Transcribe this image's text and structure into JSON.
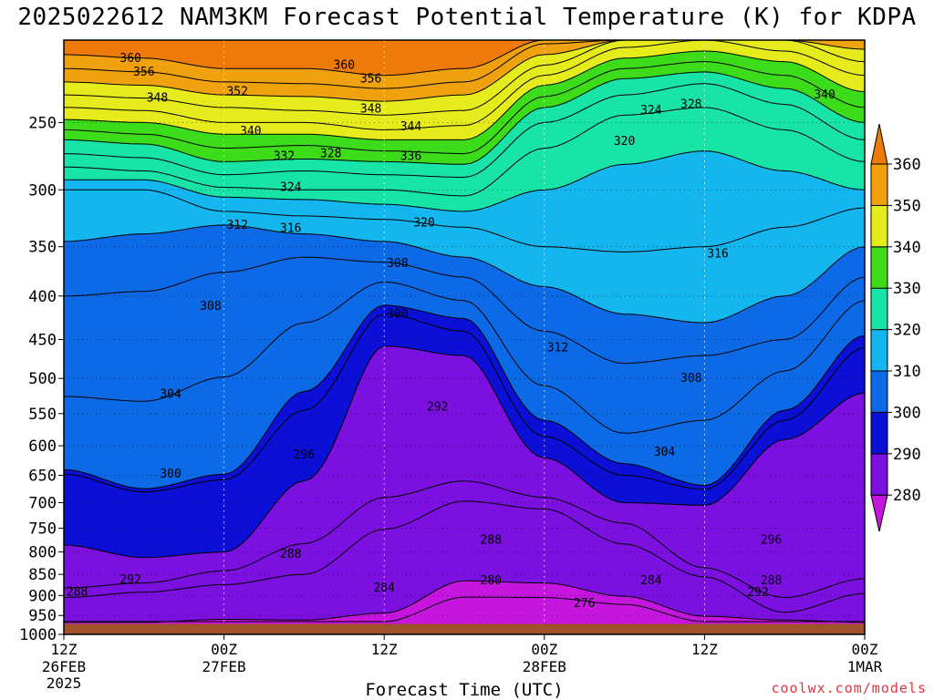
{
  "title": "2025022612 NAM3KM Forecast Potential Temperature (K) for KDPA",
  "credit": "coolwx.com/models",
  "chart_data": {
    "type": "contour",
    "title": "2025022612 NAM3KM Forecast Potential Temperature (K) for KDPA",
    "xlabel": "Forecast Time (UTC)",
    "ylabel": "",
    "x_ticks": [
      {
        "label": "12Z",
        "sub": "26FEB",
        "sub2": "2025",
        "hour": 0
      },
      {
        "label": "00Z",
        "sub": "27FEB",
        "sub2": "",
        "hour": 12
      },
      {
        "label": "12Z",
        "sub": "",
        "sub2": "",
        "hour": 24
      },
      {
        "label": "00Z",
        "sub": "28FEB",
        "sub2": "",
        "hour": 36
      },
      {
        "label": "12Z",
        "sub": "",
        "sub2": "",
        "hour": 48
      },
      {
        "label": "00Z",
        "sub": "1MAR",
        "sub2": "",
        "hour": 60
      }
    ],
    "y_ticks": [
      250,
      300,
      350,
      400,
      450,
      500,
      550,
      600,
      650,
      700,
      750,
      800,
      850,
      900,
      950,
      1000
    ],
    "ylim": [
      200,
      1000
    ],
    "y_log_scale": true,
    "ground_top_pressure": 972,
    "colorbar": {
      "levels": [
        280,
        290,
        300,
        310,
        320,
        330,
        340,
        350,
        360
      ],
      "colors": [
        "#c715e0",
        "#7b10e0",
        "#0c0fd6",
        "#0d6ae6",
        "#13b6ee",
        "#18e4a8",
        "#3cdc1a",
        "#e6ec1c",
        "#f0a20e",
        "#ee7a0a"
      ]
    },
    "series": [
      {
        "name": "276",
        "x": [
          0,
          6,
          12,
          18,
          24,
          30,
          36,
          42,
          48,
          54,
          60
        ],
        "values": [
          966,
          966,
          966,
          966,
          966,
          904,
          905,
          922,
          966,
          966,
          966
        ]
      },
      {
        "name": "280",
        "x": [
          0,
          6,
          12,
          18,
          24,
          30,
          36,
          42,
          48,
          54,
          60
        ],
        "values": [
          968,
          968,
          960,
          962,
          944,
          865,
          870,
          902,
          952,
          962,
          968
        ]
      },
      {
        "name": "284",
        "x": [
          0,
          6,
          12,
          18,
          24,
          30,
          36,
          42,
          48,
          54,
          60
        ],
        "values": [
          905,
          892,
          874,
          850,
          752,
          697,
          712,
          783,
          856,
          942,
          895
        ]
      },
      {
        "name": "288",
        "x": [
          0,
          6,
          12,
          18,
          24,
          30,
          36,
          42,
          48,
          54,
          60
        ],
        "values": [
          882,
          870,
          842,
          782,
          690,
          660,
          690,
          740,
          835,
          905,
          860
        ]
      },
      {
        "name": "292",
        "x": [
          0,
          6,
          12,
          18,
          24,
          30,
          36,
          42,
          48,
          54,
          60
        ],
        "values": [
          785,
          812,
          800,
          660,
          458,
          470,
          620,
          700,
          705,
          590,
          520
        ]
      },
      {
        "name": "296",
        "x": [
          0,
          6,
          12,
          18,
          24,
          30,
          36,
          42,
          48,
          54,
          60
        ],
        "values": [
          648,
          680,
          658,
          545,
          420,
          440,
          585,
          650,
          675,
          560,
          460
        ]
      },
      {
        "name": "300",
        "x": [
          0,
          6,
          12,
          18,
          24,
          30,
          36,
          42,
          48,
          54,
          60
        ],
        "values": [
          640,
          674,
          648,
          518,
          410,
          425,
          560,
          630,
          668,
          545,
          445
        ]
      },
      {
        "name": "304",
        "x": [
          0,
          6,
          12,
          18,
          24,
          30,
          36,
          42,
          48,
          54,
          60
        ],
        "values": [
          525,
          532,
          498,
          430,
          385,
          405,
          510,
          580,
          560,
          490,
          405
        ]
      },
      {
        "name": "308",
        "x": [
          0,
          6,
          12,
          18,
          24,
          30,
          36,
          42,
          48,
          54,
          60
        ],
        "values": [
          400,
          395,
          375,
          360,
          365,
          380,
          440,
          480,
          470,
          450,
          380
        ]
      },
      {
        "name": "312",
        "x": [
          0,
          6,
          12,
          18,
          24,
          30,
          36,
          42,
          48,
          54,
          60
        ],
        "values": [
          345,
          338,
          330,
          338,
          345,
          360,
          390,
          420,
          430,
          400,
          350
        ]
      },
      {
        "name": "316",
        "x": [
          0,
          6,
          12,
          18,
          24,
          30,
          36,
          42,
          48,
          54,
          60
        ],
        "values": [
          300,
          300,
          318,
          322,
          325,
          332,
          350,
          355,
          350,
          332,
          315
        ]
      },
      {
        "name": "320",
        "x": [
          0,
          6,
          12,
          18,
          24,
          30,
          36,
          42,
          48,
          54,
          60
        ],
        "values": [
          292,
          292,
          306,
          308,
          312,
          318,
          300,
          280,
          270,
          285,
          300
        ]
      },
      {
        "name": "324",
        "x": [
          0,
          6,
          12,
          18,
          24,
          30,
          36,
          42,
          48,
          54,
          60
        ],
        "values": [
          282,
          285,
          298,
          300,
          300,
          305,
          268,
          245,
          240,
          255,
          278
        ]
      },
      {
        "name": "328",
        "x": [
          0,
          6,
          12,
          18,
          24,
          30,
          36,
          42,
          48,
          54,
          60
        ],
        "values": [
          272,
          275,
          288,
          285,
          288,
          290,
          250,
          232,
          225,
          238,
          262
        ]
      },
      {
        "name": "332",
        "x": [
          0,
          6,
          12,
          18,
          24,
          30,
          36,
          42,
          48,
          54,
          60
        ],
        "values": [
          262,
          265,
          278,
          276,
          278,
          280,
          240,
          222,
          218,
          228,
          250
        ]
      },
      {
        "name": "336",
        "x": [
          0,
          6,
          12,
          18,
          24,
          30,
          36,
          42,
          48,
          54,
          60
        ],
        "values": [
          255,
          258,
          268,
          266,
          270,
          272,
          233,
          216,
          212,
          220,
          240
        ]
      },
      {
        "name": "340",
        "x": [
          0,
          6,
          12,
          18,
          24,
          30,
          36,
          42,
          48,
          54,
          60
        ],
        "values": [
          248,
          250,
          258,
          258,
          262,
          262,
          226,
          210,
          206,
          212,
          230
        ]
      },
      {
        "name": "344",
        "x": [
          0,
          6,
          12,
          18,
          24,
          30,
          36,
          42,
          48,
          54,
          60
        ],
        "values": [
          240,
          242,
          250,
          250,
          255,
          252,
          220,
          204,
          200,
          206,
          220
        ]
      },
      {
        "name": "348",
        "x": [
          0,
          6,
          12,
          18,
          24,
          30,
          36,
          42,
          48,
          54,
          60
        ],
        "values": [
          232,
          234,
          240,
          242,
          245,
          242,
          214,
          200,
          200,
          200,
          212
        ]
      },
      {
        "name": "352",
        "x": [
          0,
          6,
          12,
          18,
          24,
          30,
          36,
          42,
          48,
          54,
          60
        ],
        "values": [
          224,
          226,
          232,
          233,
          236,
          232,
          208,
          200,
          200,
          200,
          205
        ]
      },
      {
        "name": "356",
        "x": [
          0,
          6,
          12,
          18,
          24,
          30,
          36,
          42,
          48,
          54,
          60
        ],
        "values": [
          216,
          218,
          224,
          225,
          228,
          224,
          202,
          200,
          200,
          200,
          200
        ]
      },
      {
        "name": "360",
        "x": [
          0,
          6,
          12,
          18,
          24,
          30,
          36,
          42,
          48,
          54,
          60
        ],
        "values": [
          208,
          210,
          216,
          216,
          220,
          216,
          200,
          200,
          200,
          200,
          200
        ]
      }
    ],
    "contour_labels": [
      {
        "text": "360",
        "x": 5.0,
        "p": 210
      },
      {
        "text": "356",
        "x": 6.0,
        "p": 218
      },
      {
        "text": "348",
        "x": 7.0,
        "p": 234
      },
      {
        "text": "352",
        "x": 13.0,
        "p": 230
      },
      {
        "text": "360",
        "x": 21.0,
        "p": 214
      },
      {
        "text": "356",
        "x": 23.0,
        "p": 222
      },
      {
        "text": "348",
        "x": 23.0,
        "p": 241
      },
      {
        "text": "344",
        "x": 26.0,
        "p": 253
      },
      {
        "text": "340",
        "x": 14.0,
        "p": 256
      },
      {
        "text": "332",
        "x": 16.5,
        "p": 274
      },
      {
        "text": "328",
        "x": 20.0,
        "p": 272
      },
      {
        "text": "336",
        "x": 26.0,
        "p": 274
      },
      {
        "text": "324",
        "x": 17.0,
        "p": 298
      },
      {
        "text": "312",
        "x": 13.0,
        "p": 330
      },
      {
        "text": "316",
        "x": 17.0,
        "p": 333
      },
      {
        "text": "320",
        "x": 27.0,
        "p": 328
      },
      {
        "text": "324",
        "x": 44.0,
        "p": 242
      },
      {
        "text": "328",
        "x": 47.0,
        "p": 238
      },
      {
        "text": "320",
        "x": 42.0,
        "p": 263
      },
      {
        "text": "340",
        "x": 57.0,
        "p": 232
      },
      {
        "text": "316",
        "x": 49.0,
        "p": 357
      },
      {
        "text": "308",
        "x": 25.0,
        "p": 366
      },
      {
        "text": "308",
        "x": 11.0,
        "p": 411
      },
      {
        "text": "300",
        "x": 25.0,
        "p": 420
      },
      {
        "text": "312",
        "x": 37.0,
        "p": 460
      },
      {
        "text": "308",
        "x": 47.0,
        "p": 500
      },
      {
        "text": "304",
        "x": 8.0,
        "p": 522
      },
      {
        "text": "292",
        "x": 28.0,
        "p": 540
      },
      {
        "text": "304",
        "x": 45.0,
        "p": 610
      },
      {
        "text": "296",
        "x": 18.0,
        "p": 615
      },
      {
        "text": "300",
        "x": 8.0,
        "p": 648
      },
      {
        "text": "288",
        "x": 32.0,
        "p": 775
      },
      {
        "text": "288",
        "x": 17.0,
        "p": 805
      },
      {
        "text": "296",
        "x": 53.0,
        "p": 775
      },
      {
        "text": "292",
        "x": 5.0,
        "p": 862
      },
      {
        "text": "288",
        "x": 1.0,
        "p": 892
      },
      {
        "text": "284",
        "x": 24.0,
        "p": 882
      },
      {
        "text": "284",
        "x": 44.0,
        "p": 865
      },
      {
        "text": "280",
        "x": 32.0,
        "p": 865
      },
      {
        "text": "276",
        "x": 39.0,
        "p": 920
      },
      {
        "text": "288",
        "x": 53.0,
        "p": 865
      },
      {
        "text": "292",
        "x": 52.0,
        "p": 893
      }
    ]
  }
}
